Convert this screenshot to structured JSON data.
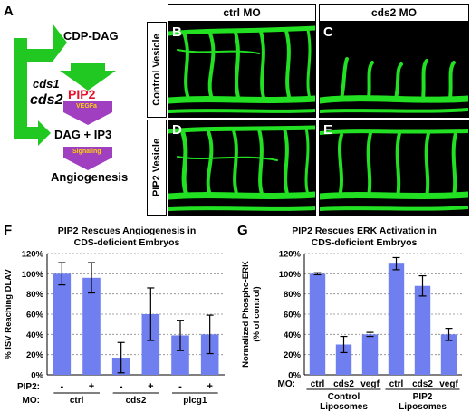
{
  "panels": {
    "A": "A",
    "B": "B",
    "C": "C",
    "D": "D",
    "E": "E",
    "F": "F",
    "G": "G"
  },
  "pathway": {
    "genes": [
      "cds1",
      "cds2"
    ],
    "cdp_dag": "CDP-DAG",
    "pip2": "PIP2",
    "vegfa": "VEGFa",
    "dag_ip3": "DAG + IP3",
    "signaling": "Signaling",
    "angiogenesis": "Angiogenesis",
    "colors": {
      "green": "#22c822",
      "pip2_red": "#e8102a",
      "arrow_purple": "#a040c0"
    }
  },
  "micrographs": {
    "col_headers": [
      "ctrl MO",
      "cds2 MO"
    ],
    "row_headers": [
      "Control Vesicle",
      "PIP2 Vesicle"
    ]
  },
  "chart_data": [
    {
      "type": "bar",
      "title": "PIP2 Rescues Angiogenesis in CDS-deficient Embryos",
      "ylabel": "% ISV Reaching DLAV",
      "ylim": [
        0,
        120
      ],
      "yticks": [
        "0%",
        "20%",
        "40%",
        "60%",
        "80%",
        "100%",
        "120%"
      ],
      "grid": true,
      "row1_label": "PIP2:",
      "row2_label": "MO:",
      "pip2": [
        "-",
        "+",
        "-",
        "+",
        "-",
        "+"
      ],
      "groups": [
        "ctrl",
        "cds2",
        "plcg1"
      ],
      "values": [
        100,
        96,
        17,
        60,
        39,
        40
      ],
      "errors": [
        11,
        15,
        15,
        26,
        15,
        19
      ],
      "color": "#6f7ff0"
    },
    {
      "type": "bar",
      "title": "PIP2 Rescues ERK Activation in CDS-deficient Embryos",
      "ylabel": "Normalized Phospho-ERK (% of control)",
      "ylim": [
        0,
        120
      ],
      "yticks": [
        "0%",
        "20%",
        "40%",
        "60%",
        "80%",
        "100%",
        "120%"
      ],
      "grid": true,
      "row_label": "MO:",
      "categories": [
        "ctrl",
        "cds2",
        "vegf",
        "ctrl",
        "cds2",
        "vegf"
      ],
      "groups": [
        "Control Liposomes",
        "PIP2 Liposomes"
      ],
      "values": [
        100,
        30,
        40,
        110,
        88,
        40
      ],
      "errors": [
        1,
        8,
        2,
        6,
        10,
        6
      ],
      "color": "#6f7ff0"
    }
  ]
}
